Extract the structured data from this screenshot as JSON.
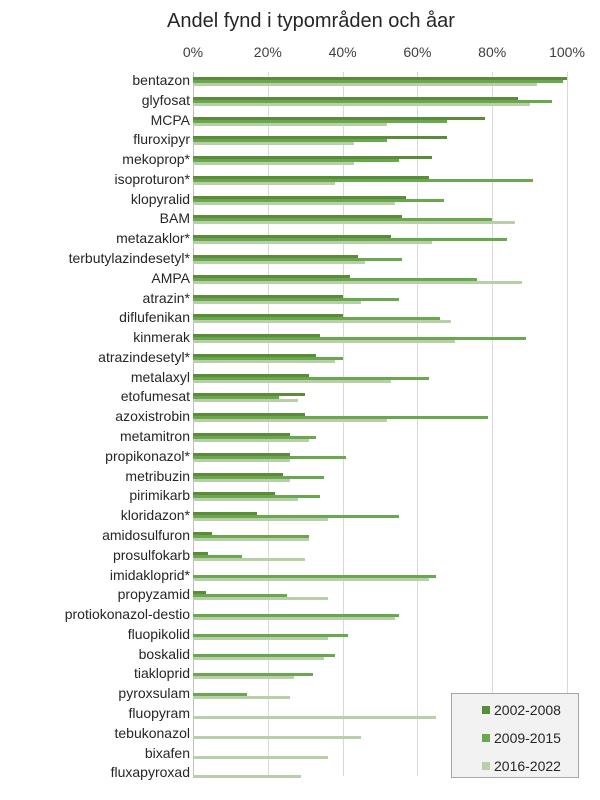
{
  "chart_data": {
    "type": "bar",
    "orientation": "horizontal",
    "title": "Andel fynd i typområden och åar",
    "xlabel": "",
    "ylabel": "",
    "xlim": [
      0,
      100
    ],
    "x_ticks": [
      "0%",
      "20%",
      "40%",
      "60%",
      "80%",
      "100%"
    ],
    "grid": true,
    "legend_position": "bottom-right",
    "categories": [
      "bentazon",
      "glyfosat",
      "MCPA",
      "fluroxipyr",
      "mekoprop*",
      "isoproturon*",
      "klopyralid",
      "BAM",
      "metazaklor*",
      "terbutylazindesetyl*",
      "AMPA",
      "atrazin*",
      "diflufenikan",
      "kinmerak",
      "atrazindesetyl*",
      "metalaxyl",
      "etofumesat",
      "azoxistrobin",
      "metamitron",
      "propikonazol*",
      "metribuzin",
      "pirimikarb",
      "kloridazon*",
      "amidosulfuron",
      "prosulfokarb",
      "imidakloprid*",
      "propyzamid",
      "protiokonazol-destio",
      "fluopikolid",
      "boskalid",
      "tiakloprid",
      "pyroxsulam",
      "fluopyram",
      "tebukonazol",
      "bixafen",
      "fluxapyroxad"
    ],
    "series": [
      {
        "name": "2002-2008",
        "color": "#5b8c3a",
        "values": [
          100,
          87,
          78,
          68,
          64,
          63,
          57,
          56,
          53,
          44,
          42,
          40,
          40,
          34,
          33,
          31,
          30,
          30,
          26,
          26,
          24,
          22,
          17,
          5,
          4,
          0,
          3.5,
          0,
          0,
          0,
          0,
          0,
          0,
          0,
          0,
          0
        ]
      },
      {
        "name": "2009-2015",
        "color": "#6aa84f",
        "values": [
          99,
          96,
          68,
          52,
          55,
          91,
          67,
          80,
          84,
          56,
          76,
          55,
          66,
          89,
          40,
          63,
          23,
          79,
          33,
          41,
          35,
          34,
          55,
          31,
          13,
          65,
          25,
          55,
          41.5,
          38,
          32,
          14.5,
          0,
          0,
          0,
          0
        ]
      },
      {
        "name": "2016-2022",
        "color": "#b9cfa9",
        "values": [
          92,
          90,
          52,
          43,
          43,
          38,
          54,
          86,
          64,
          46,
          88,
          45,
          69,
          70,
          38,
          53,
          28,
          52,
          31,
          26,
          26,
          28,
          36,
          31,
          30,
          63,
          36,
          54,
          36,
          35,
          27,
          26,
          65,
          45,
          36,
          29
        ]
      }
    ]
  }
}
